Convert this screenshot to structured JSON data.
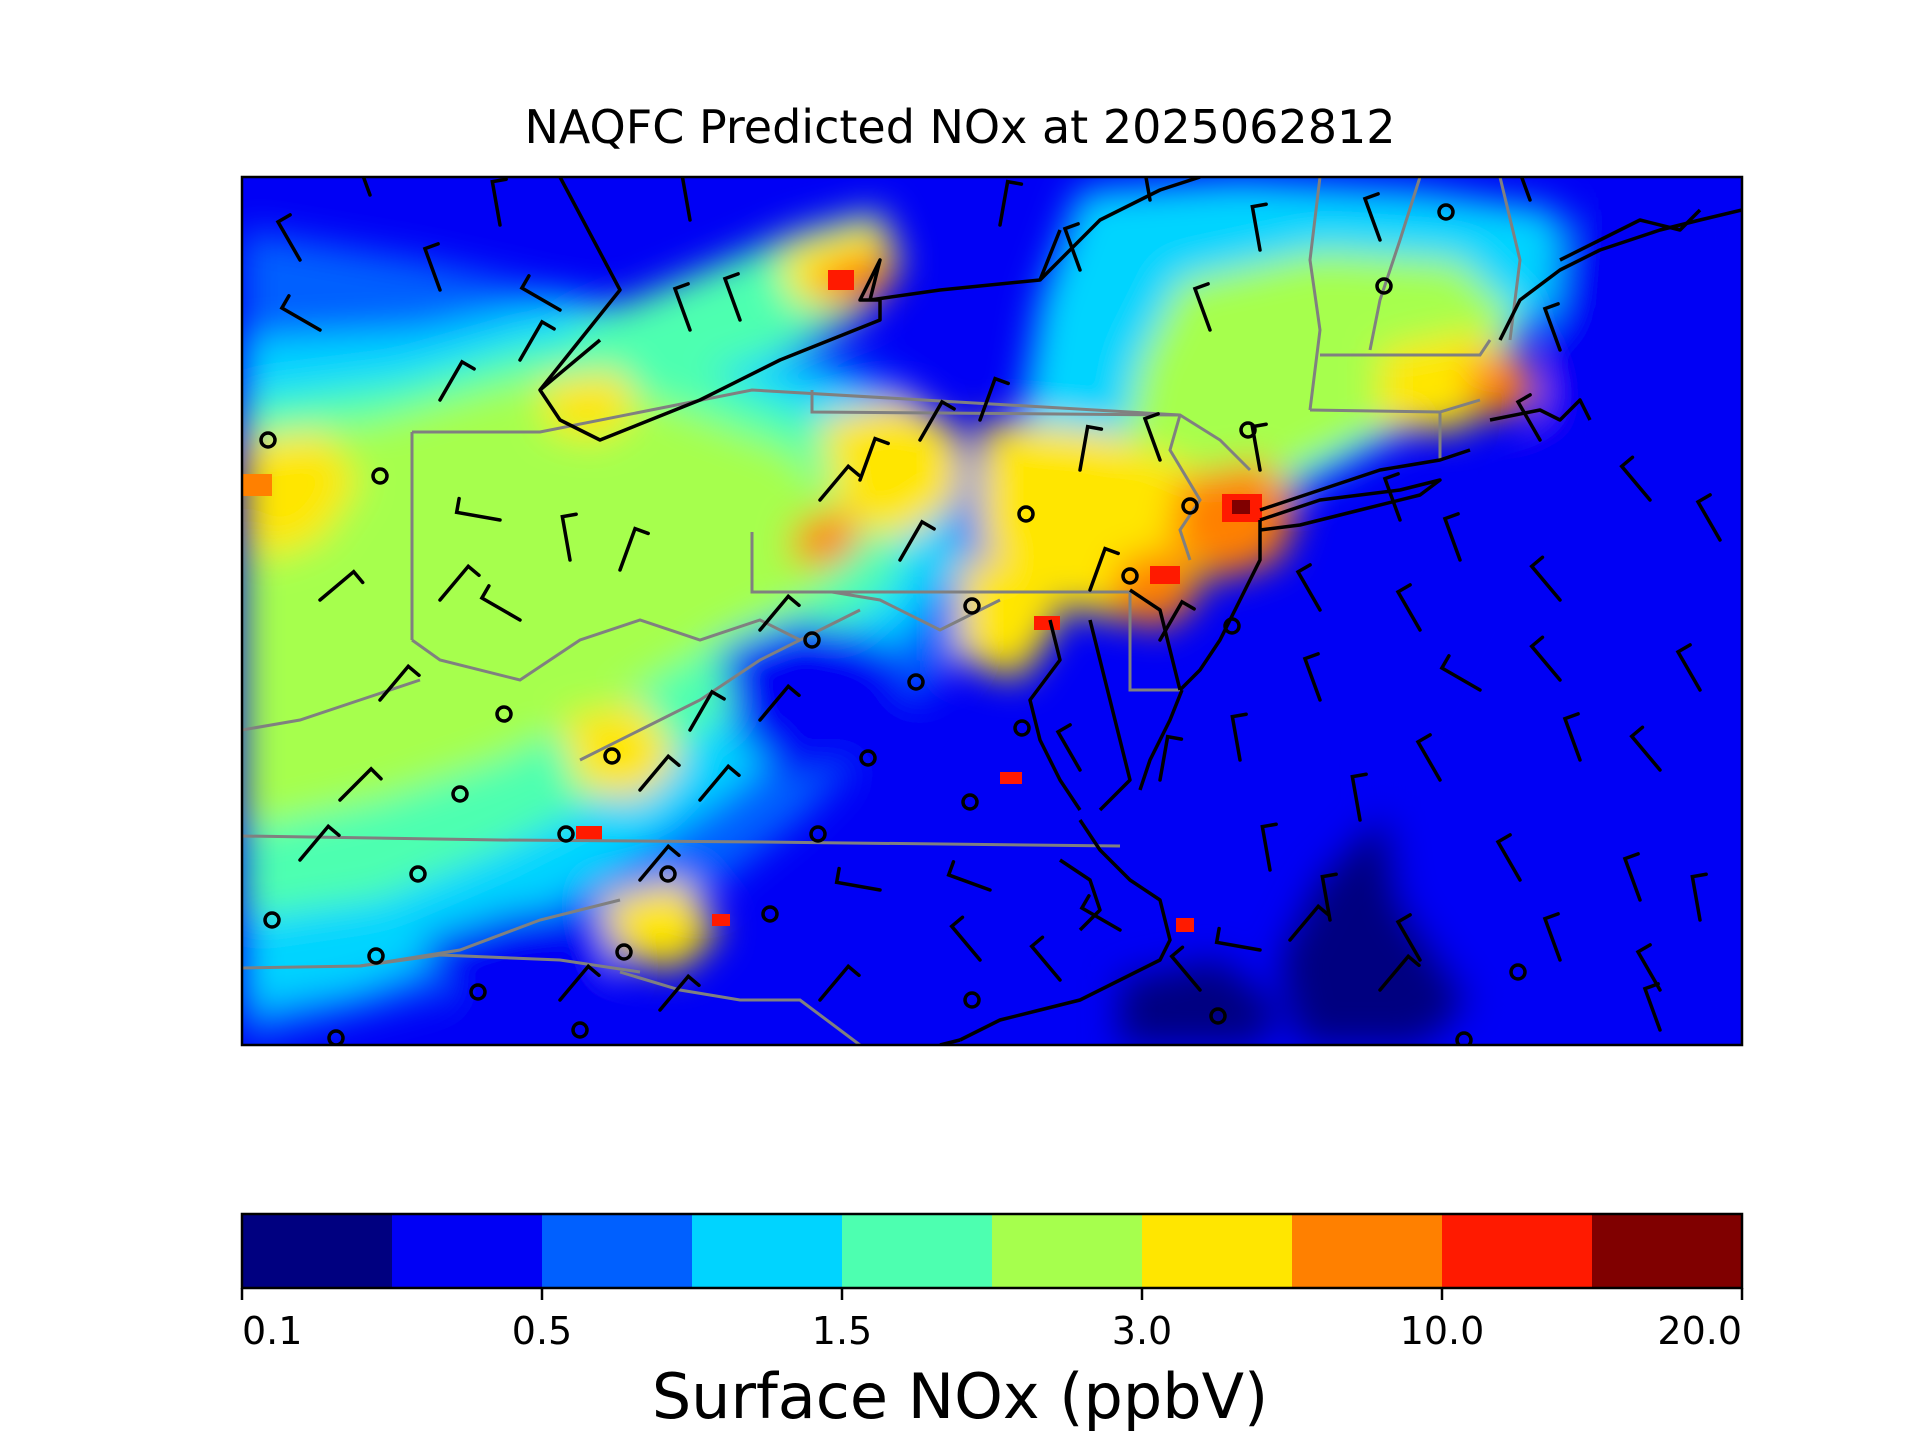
{
  "title": "NAQFC Predicted NOx at 2025062812",
  "colorbar": {
    "label": "Surface NOx (ppbV)",
    "tick_labels": [
      "0.1",
      "0.5",
      "1.5",
      "3.0",
      "10.0",
      "20.0"
    ],
    "colors": [
      "#000080",
      "#0000f5",
      "#0060ff",
      "#00d4ff",
      "#4dffb0",
      "#a6ff4d",
      "#ffe600",
      "#ff8000",
      "#ff1a00",
      "#800000"
    ]
  },
  "map": {
    "background_color": "#0000f5",
    "coastline_color": "#000000",
    "state_border_color": "#808080",
    "symbols": [
      "wind-barbs",
      "calm-wind-circles"
    ]
  }
}
